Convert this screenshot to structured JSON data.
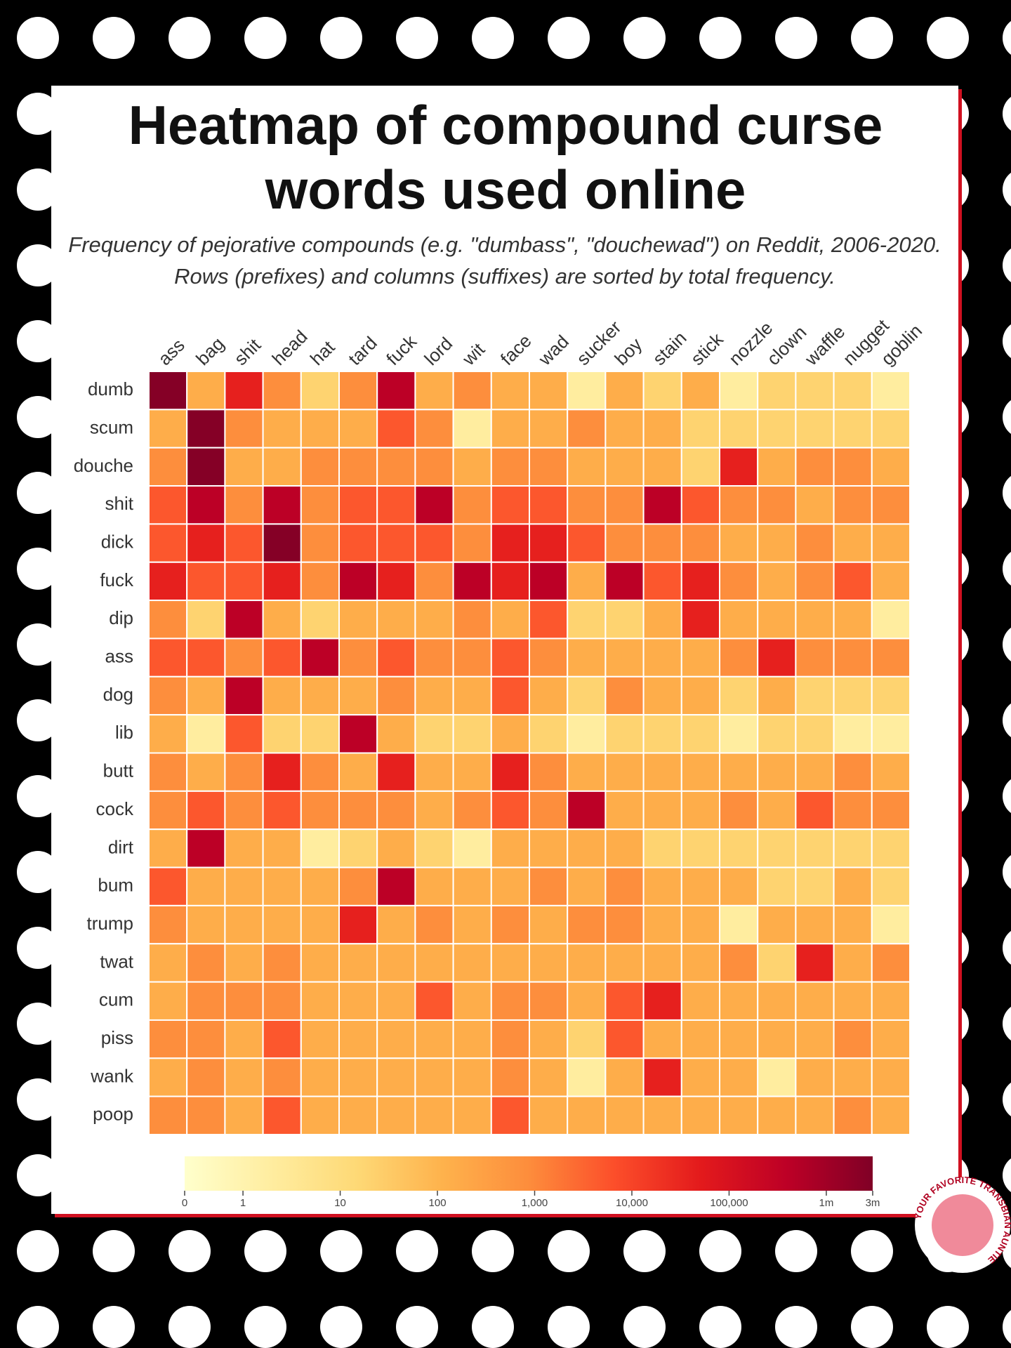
{
  "chart_data": {
    "type": "heatmap",
    "title": "Heatmap of compound curse words used online",
    "subtitle": "Frequency of pejorative compounds (e.g. \"dumbass\", \"douchewad\") on Reddit, 2006-2020. Rows (prefixes) and columns (suffixes) are sorted by total frequency.",
    "x_categories": [
      "ass",
      "bag",
      "shit",
      "head",
      "hat",
      "tard",
      "fuck",
      "lord",
      "wit",
      "face",
      "wad",
      "sucker",
      "boy",
      "stain",
      "stick",
      "nozzle",
      "clown",
      "waffle",
      "nugget",
      "goblin"
    ],
    "y_categories": [
      "dumb",
      "scum",
      "douche",
      "shit",
      "dick",
      "fuck",
      "dip",
      "ass",
      "dog",
      "lib",
      "butt",
      "cock",
      "dirt",
      "bum",
      "trump",
      "twat",
      "cum",
      "piss",
      "wank",
      "poop"
    ],
    "values": [
      [
        2500000,
        150,
        40000,
        800,
        20,
        800,
        400000,
        150,
        800,
        150,
        150,
        2,
        150,
        20,
        150,
        2,
        20,
        20,
        20,
        2
      ],
      [
        150,
        2500000,
        800,
        150,
        150,
        150,
        5000,
        800,
        2,
        150,
        150,
        800,
        150,
        150,
        20,
        20,
        20,
        20,
        20,
        20
      ],
      [
        800,
        2500000,
        150,
        150,
        800,
        800,
        800,
        800,
        150,
        800,
        800,
        150,
        150,
        150,
        20,
        40000,
        150,
        800,
        800,
        150
      ],
      [
        5000,
        400000,
        800,
        400000,
        800,
        5000,
        5000,
        400000,
        800,
        5000,
        5000,
        800,
        800,
        400000,
        5000,
        800,
        800,
        150,
        800,
        800
      ],
      [
        5000,
        40000,
        5000,
        2500000,
        800,
        5000,
        5000,
        5000,
        800,
        40000,
        40000,
        5000,
        800,
        800,
        800,
        150,
        150,
        800,
        150,
        150
      ],
      [
        40000,
        5000,
        5000,
        40000,
        800,
        400000,
        40000,
        800,
        400000,
        40000,
        400000,
        150,
        400000,
        5000,
        40000,
        800,
        150,
        800,
        5000,
        150
      ],
      [
        800,
        20,
        400000,
        150,
        20,
        150,
        150,
        150,
        800,
        150,
        5000,
        20,
        20,
        150,
        40000,
        150,
        150,
        150,
        150,
        2
      ],
      [
        5000,
        5000,
        800,
        5000,
        400000,
        800,
        5000,
        800,
        800,
        5000,
        800,
        150,
        150,
        150,
        150,
        800,
        40000,
        800,
        800,
        800
      ],
      [
        800,
        150,
        400000,
        150,
        150,
        150,
        800,
        150,
        150,
        5000,
        150,
        20,
        800,
        150,
        150,
        20,
        150,
        20,
        20,
        20
      ],
      [
        150,
        2,
        5000,
        20,
        20,
        400000,
        150,
        20,
        20,
        150,
        20,
        2,
        20,
        20,
        20,
        2,
        20,
        20,
        2,
        2
      ],
      [
        800,
        150,
        800,
        40000,
        800,
        150,
        40000,
        150,
        150,
        40000,
        800,
        150,
        150,
        150,
        150,
        150,
        150,
        150,
        800,
        150
      ],
      [
        800,
        5000,
        800,
        5000,
        800,
        800,
        800,
        150,
        800,
        5000,
        800,
        400000,
        150,
        150,
        150,
        800,
        150,
        5000,
        800,
        800
      ],
      [
        150,
        400000,
        150,
        150,
        2,
        20,
        150,
        20,
        2,
        150,
        150,
        150,
        150,
        20,
        20,
        20,
        20,
        20,
        20,
        20
      ],
      [
        5000,
        150,
        150,
        150,
        150,
        800,
        400000,
        150,
        150,
        150,
        800,
        150,
        800,
        150,
        150,
        150,
        20,
        20,
        150,
        20
      ],
      [
        800,
        150,
        150,
        150,
        150,
        40000,
        150,
        800,
        150,
        800,
        150,
        800,
        800,
        150,
        150,
        2,
        150,
        150,
        150,
        2
      ],
      [
        150,
        800,
        150,
        800,
        150,
        150,
        150,
        150,
        150,
        150,
        150,
        150,
        150,
        150,
        150,
        800,
        20,
        40000,
        150,
        800
      ],
      [
        150,
        800,
        800,
        800,
        150,
        150,
        150,
        5000,
        150,
        800,
        800,
        150,
        5000,
        40000,
        150,
        150,
        150,
        150,
        150,
        150
      ],
      [
        800,
        800,
        150,
        5000,
        150,
        150,
        150,
        150,
        150,
        800,
        150,
        20,
        5000,
        150,
        150,
        150,
        150,
        150,
        800,
        150
      ],
      [
        150,
        800,
        150,
        800,
        150,
        150,
        150,
        150,
        150,
        800,
        150,
        2,
        150,
        40000,
        150,
        150,
        2,
        150,
        150,
        150
      ],
      [
        800,
        800,
        150,
        5000,
        150,
        150,
        150,
        150,
        150,
        5000,
        150,
        150,
        150,
        150,
        150,
        150,
        150,
        150,
        800,
        150
      ]
    ],
    "scale": "symlog",
    "clim": [
      0,
      3000000
    ],
    "colorscale": [
      "#ffffcc",
      "#ffeda0",
      "#fed976",
      "#feb24c",
      "#fd8d3c",
      "#fc4e2a",
      "#e31a1c",
      "#bd0026",
      "#800026"
    ],
    "cticks": [
      0,
      1,
      10,
      100,
      {
        "value": 1000,
        "label": "1,000"
      },
      {
        "value": 10000,
        "label": "10,000"
      },
      {
        "value": 100000,
        "label": "100,000"
      },
      {
        "value": 1000000,
        "label": "1m"
      },
      {
        "value": 3000000,
        "label": "3m"
      }
    ]
  },
  "watermark": "YOUR FAVORITE TRANSBIAN AUNTIE"
}
